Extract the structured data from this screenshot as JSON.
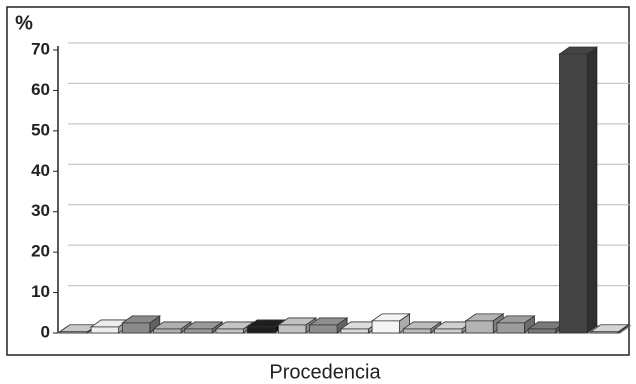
{
  "chart_data": {
    "type": "bar3d",
    "y_label": "%",
    "x_label": "Procedencia",
    "categories": [
      null,
      null,
      null,
      null,
      null,
      null,
      null,
      null,
      null,
      null,
      null,
      null,
      null,
      null,
      null,
      null,
      null,
      null
    ],
    "values": [
      0.3,
      1.5,
      2.5,
      1,
      1,
      1,
      1.5,
      2,
      2,
      1,
      3,
      1,
      1,
      3,
      2.5,
      1,
      69,
      0.3
    ],
    "colors": [
      "#c8c8c8",
      "#ececec",
      "#8a8a8a",
      "#b0b0b0",
      "#9a9a9a",
      "#c4c4c4",
      "#1e1e1e",
      "#c2c2c2",
      "#8e8e8e",
      "#dcdcdc",
      "#f4f4f4",
      "#bdbdbd",
      "#d0d0d0",
      "#b4b4b4",
      "#9c9c9c",
      "#7a7a7a",
      "#444444",
      "#d4d4d4"
    ],
    "ylim": [
      0,
      70
    ],
    "yticks": [
      0,
      10,
      20,
      30,
      40,
      50,
      60,
      70
    ],
    "grid": true
  }
}
